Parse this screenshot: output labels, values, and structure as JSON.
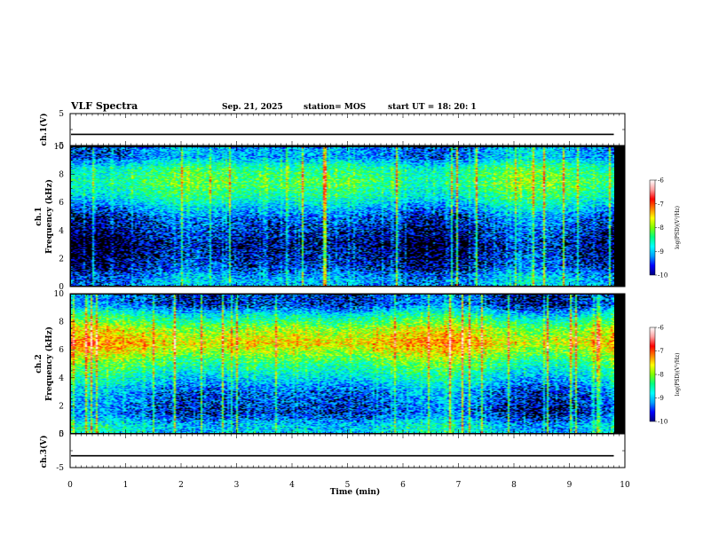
{
  "header": {
    "title": "VLF Spectra",
    "date": "Sep. 21, 2025",
    "station": "station= MOS",
    "start": "start UT = 18: 20: 1"
  },
  "colors": {
    "background": "#000000",
    "colormap": [
      "#000080",
      "#0000ff",
      "#00a0ff",
      "#00ffff",
      "#00ff80",
      "#80ff00",
      "#ffff00",
      "#ff8000",
      "#ff0000",
      "#ffa0a0",
      "#ffffff"
    ],
    "trace": "#000000"
  },
  "chart_data": [
    {
      "type": "line",
      "panel": "ch1-waveform",
      "ylabel": "ch.1(V)",
      "ylim": [
        -5,
        5
      ],
      "yticks": [
        "5",
        "-5"
      ],
      "x": [
        0,
        10
      ],
      "series": [
        {
          "values": [
            -1.5,
            -1.5
          ]
        }
      ]
    },
    {
      "type": "heatmap",
      "panel": "ch1-spectrogram",
      "ylabel": "ch.1 Frequency (kHz)",
      "ylim": [
        0,
        10
      ],
      "yticks": [
        "0",
        "2",
        "4",
        "6",
        "8",
        "10"
      ],
      "xlim": [
        0,
        9.8
      ],
      "colorbar": {
        "label": "log(PSD)(V²/Hz)",
        "range": [
          -10,
          -6
        ],
        "ticks": [
          "-6",
          "-7",
          "-8",
          "-9",
          "-10"
        ]
      },
      "band_profile": [
        {
          "f": 0.5,
          "level": -9.2
        },
        {
          "f": 1.5,
          "level": -9.6
        },
        {
          "f": 3.0,
          "level": -9.8
        },
        {
          "f": 5.0,
          "level": -9.4
        },
        {
          "f": 6.5,
          "level": -8.6
        },
        {
          "f": 7.5,
          "level": -8.3
        },
        {
          "f": 8.5,
          "level": -8.5
        },
        {
          "f": 9.3,
          "level": -9.2
        }
      ]
    },
    {
      "type": "heatmap",
      "panel": "ch2-spectrogram",
      "ylabel": "ch.2 Frequency (kHz)",
      "ylim": [
        0,
        10
      ],
      "yticks": [
        "0",
        "2",
        "4",
        "6",
        "8",
        "10"
      ],
      "xlim": [
        0,
        9.8
      ],
      "colorbar": {
        "label": "log(PSD)(V²/Hz)",
        "range": [
          -10,
          -6
        ],
        "ticks": [
          "-6",
          "-7",
          "-8",
          "-9",
          "-10"
        ]
      },
      "band_profile": [
        {
          "f": 0.5,
          "level": -9.0
        },
        {
          "f": 1.5,
          "level": -9.5
        },
        {
          "f": 3.0,
          "level": -9.3
        },
        {
          "f": 5.0,
          "level": -8.4
        },
        {
          "f": 6.5,
          "level": -7.5
        },
        {
          "f": 7.5,
          "level": -7.9
        },
        {
          "f": 8.5,
          "level": -8.7
        },
        {
          "f": 9.3,
          "level": -9.5
        }
      ]
    },
    {
      "type": "line",
      "panel": "ch3-waveform",
      "ylabel": "ch.3(V)",
      "ylim": [
        -5,
        5
      ],
      "yticks": [
        "5",
        "-5"
      ],
      "x": [
        0,
        10
      ],
      "series": [
        {
          "values": [
            -1.5,
            -1.5
          ]
        }
      ]
    }
  ],
  "xaxis": {
    "label": "Time (min)",
    "xlim": [
      0,
      10
    ],
    "ticks": [
      "0",
      "1",
      "2",
      "3",
      "4",
      "5",
      "6",
      "7",
      "8",
      "9",
      "10"
    ]
  }
}
